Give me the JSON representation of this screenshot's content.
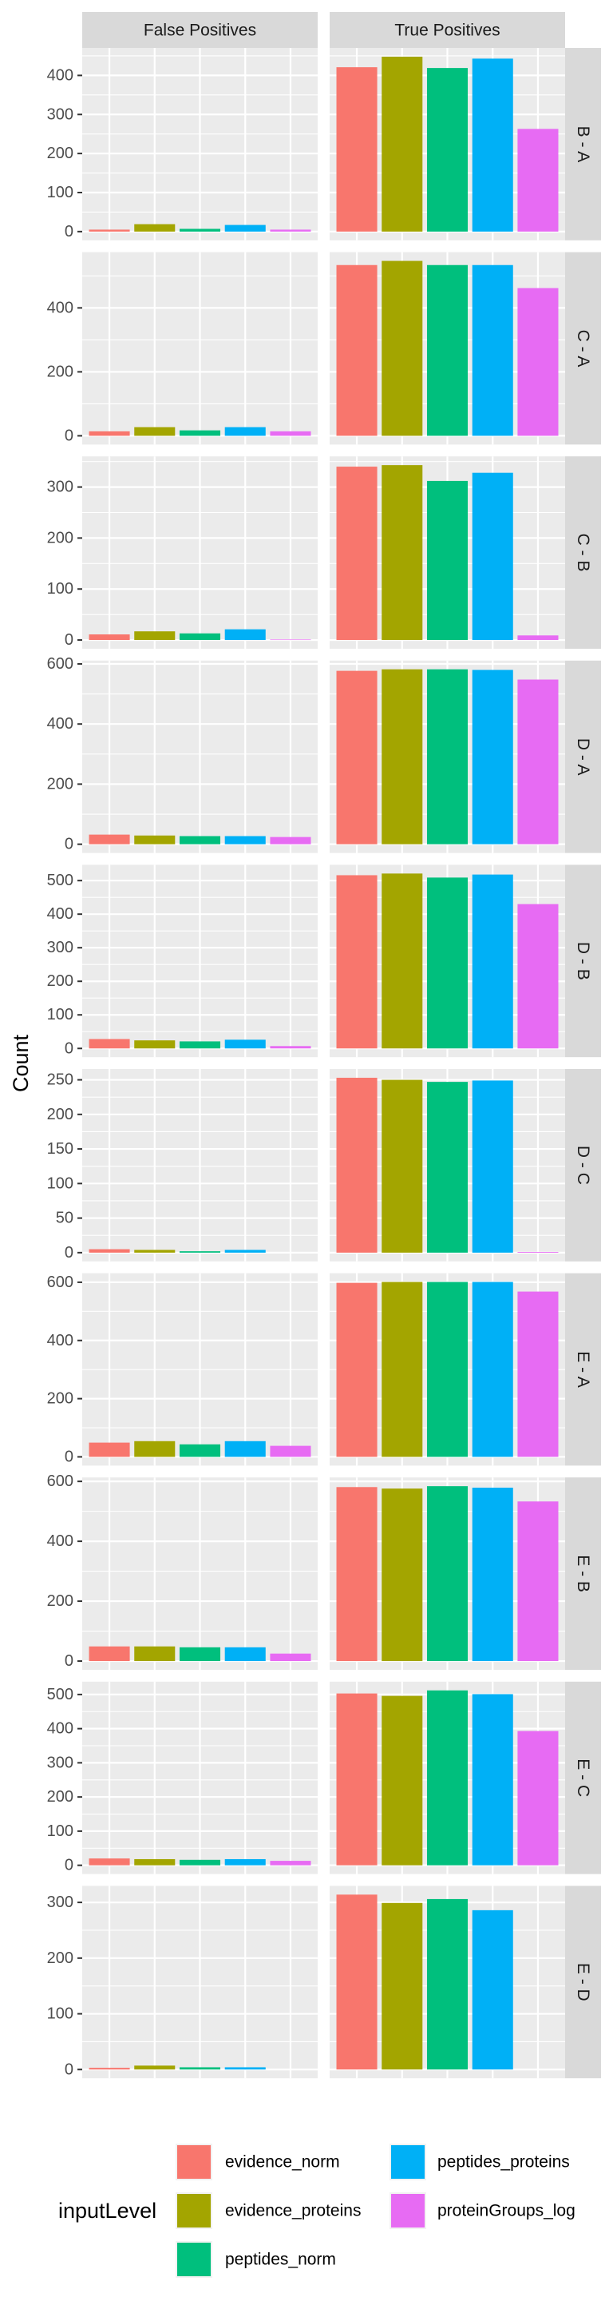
{
  "chart_data": {
    "type": "bar",
    "ylabel": "Count",
    "grid": true,
    "facet_columns": [
      {
        "key": "fp",
        "label": "False Positives"
      },
      {
        "key": "tp",
        "label": "True Positives"
      }
    ],
    "categories": [
      "evidence_norm",
      "evidence_proteins",
      "peptides_norm",
      "peptides_proteins",
      "proteinGroups_log"
    ],
    "colors": [
      "#F8766D",
      "#A3A500",
      "#00BF7D",
      "#00B0F6",
      "#E76BF3"
    ],
    "legend": {
      "title": "inputLevel",
      "position": "bottom"
    },
    "panels": [
      {
        "label": "B - A",
        "ticks": [
          0,
          100,
          200,
          300,
          400
        ],
        "fp": [
          5,
          19,
          7,
          17,
          5
        ],
        "tp": [
          421,
          448,
          419,
          443,
          263
        ]
      },
      {
        "label": "C - A",
        "ticks": [
          0,
          200,
          400
        ],
        "fp": [
          14,
          27,
          17,
          27,
          14
        ],
        "tp": [
          534,
          547,
          534,
          534,
          462
        ]
      },
      {
        "label": "C - B",
        "ticks": [
          0,
          100,
          200,
          300
        ],
        "fp": [
          11,
          17,
          13,
          21,
          1
        ],
        "tp": [
          340,
          343,
          312,
          328,
          9
        ]
      },
      {
        "label": "D - A",
        "ticks": [
          0,
          200,
          400,
          600
        ],
        "fp": [
          32,
          29,
          27,
          27,
          24
        ],
        "tp": [
          577,
          582,
          582,
          580,
          548
        ]
      },
      {
        "label": "D - B",
        "ticks": [
          0,
          100,
          200,
          300,
          400,
          500
        ],
        "fp": [
          28,
          24,
          21,
          26,
          7
        ],
        "tp": [
          516,
          521,
          509,
          518,
          430
        ]
      },
      {
        "label": "D - C",
        "ticks": [
          0,
          50,
          100,
          150,
          200,
          250
        ],
        "fp": [
          5,
          4,
          2,
          4,
          0
        ],
        "tp": [
          253,
          250,
          247,
          249,
          1
        ]
      },
      {
        "label": "E - A",
        "ticks": [
          0,
          200,
          400,
          600
        ],
        "fp": [
          49,
          54,
          43,
          54,
          38
        ],
        "tp": [
          598,
          601,
          601,
          601,
          568
        ]
      },
      {
        "label": "E - B",
        "ticks": [
          0,
          200,
          400,
          600
        ],
        "fp": [
          49,
          49,
          46,
          46,
          25
        ],
        "tp": [
          581,
          576,
          584,
          579,
          533
        ]
      },
      {
        "label": "E - C",
        "ticks": [
          0,
          100,
          200,
          300,
          400,
          500
        ],
        "fp": [
          20,
          18,
          16,
          18,
          13
        ],
        "tp": [
          503,
          496,
          512,
          501,
          393
        ]
      },
      {
        "label": "E - D",
        "ticks": [
          0,
          100,
          200,
          300
        ],
        "fp": [
          3,
          7,
          4,
          4,
          0
        ],
        "tp": [
          314,
          299,
          306,
          286,
          0
        ]
      }
    ]
  }
}
